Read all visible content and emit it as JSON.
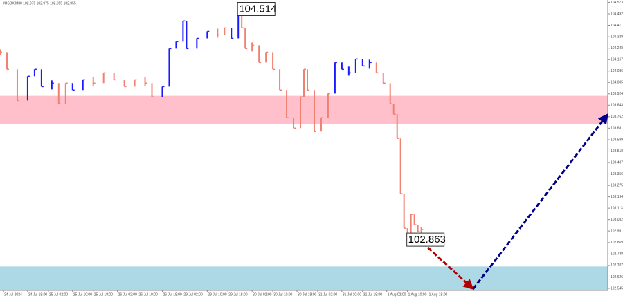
{
  "chart_data": {
    "type": "bar-chart-price",
    "header": "#USDX,M30 102.970 102.975 102.955 102.955",
    "x": [
      0,
      2,
      5,
      8,
      10,
      12,
      15,
      17,
      19,
      21,
      24,
      27,
      30,
      33,
      36,
      39,
      42,
      44,
      47,
      49,
      51,
      53,
      54,
      57,
      60,
      63,
      65,
      67,
      69,
      70,
      71,
      73,
      75,
      77,
      79,
      81,
      83,
      85,
      87,
      88,
      89,
      91,
      93,
      95,
      97,
      99,
      101,
      103,
      105,
      107,
      109,
      111,
      113,
      114,
      115,
      116,
      117,
      118,
      119,
      120,
      121,
      122
    ],
    "values": [
      104.22,
      104.098,
      103.877,
      104.049,
      104.098,
      103.975,
      104.0,
      103.853,
      104.0,
      103.951,
      104.024,
      104.0,
      104.073,
      104.024,
      103.975,
      104.024,
      104.0,
      103.902,
      103.975,
      104.245,
      104.294,
      104.441,
      104.245,
      104.318,
      104.367,
      104.343,
      104.392,
      104.318,
      104.514,
      104.392,
      104.245,
      104.269,
      104.147,
      104.22,
      104.098,
      103.951,
      103.755,
      103.681,
      103.902,
      104.098,
      103.951,
      103.657,
      103.755,
      103.926,
      104.147,
      104.098,
      104.073,
      104.171,
      104.122,
      104.147,
      104.073,
      104.0,
      103.853,
      103.779,
      103.608,
      103.216,
      102.971,
      102.863,
      103.069,
      102.995,
      102.946,
      102.961
    ],
    "colors": [
      "#f08070",
      "#f08070",
      "#f08070",
      "#1a1aff",
      "#1a1aff",
      "#1a1aff",
      "#1a1aff",
      "#f08070",
      "#f08070",
      "#1a1aff",
      "#1a1aff",
      "#f08070",
      "#f08070",
      "#f08070",
      "#f08070",
      "#f08070",
      "#f08070",
      "#f08070",
      "#1a1aff",
      "#1a1aff",
      "#1a1aff",
      "#1a1aff",
      "#1a1aff",
      "#1a1aff",
      "#1a1aff",
      "#f08070",
      "#f08070",
      "#1a1aff",
      "#1a1aff",
      "#f08070",
      "#f08070",
      "#f08070",
      "#f08070",
      "#f08070",
      "#f08070",
      "#f08070",
      "#f08070",
      "#f08070",
      "#f08070",
      "#f08070",
      "#f08070",
      "#f08070",
      "#f08070",
      "#f08070",
      "#1a1aff",
      "#1a1aff",
      "#1a1aff",
      "#1a1aff",
      "#1a1aff",
      "#1a1aff",
      "#f08070",
      "#f08070",
      "#f08070",
      "#f08070",
      "#f08070",
      "#f08070",
      "#f08070",
      "#f08070",
      "#f08070",
      "#f08070",
      "#f08070",
      "#f08070"
    ],
    "xlim": [
      0,
      176
    ],
    "ylim": [
      102.53,
      104.59
    ],
    "yticks": [
      104.573,
      104.492,
      104.411,
      104.329,
      104.248,
      104.167,
      104.086,
      104.005,
      103.924,
      103.843,
      103.762,
      103.681,
      103.599,
      103.518,
      103.437,
      103.356,
      103.275,
      103.194,
      103.113,
      103.032,
      102.951,
      102.869,
      102.788,
      102.707,
      102.626,
      102.545
    ],
    "xticks": [
      {
        "value": 1,
        "label": "24 Jul 2024"
      },
      {
        "value": 8,
        "label": "24 Jul 18:00"
      },
      {
        "value": 14,
        "label": "25 Jul 02:00"
      },
      {
        "value": 21,
        "label": "25 Jul 10:00"
      },
      {
        "value": 27,
        "label": "25 Jul 18:00"
      },
      {
        "value": 34,
        "label": "26 Jul 02:00"
      },
      {
        "value": 40,
        "label": "26 Jul 10:00"
      },
      {
        "value": 47,
        "label": "26 Jul 18:00"
      },
      {
        "value": 53,
        "label": "29 Jul 02:00"
      },
      {
        "value": 60,
        "label": "29 Jul 10:00"
      },
      {
        "value": 66,
        "label": "29 Jul 18:00"
      },
      {
        "value": 73,
        "label": "30 Jul 02:00"
      },
      {
        "value": 79,
        "label": "30 Jul 10:00"
      },
      {
        "value": 86,
        "label": "30 Jul 18:00"
      },
      {
        "value": 92,
        "label": "31 Jul 02:00"
      },
      {
        "value": 99,
        "label": "31 Jul 10:00"
      },
      {
        "value": 105,
        "label": "31 Jul 18:00"
      },
      {
        "value": 112,
        "label": "1 Aug 02:00"
      },
      {
        "value": 118,
        "label": "1 Aug 10:00"
      },
      {
        "value": 124,
        "label": "1 Aug 18:00"
      }
    ],
    "zones": [
      {
        "from": 103.71,
        "to": 103.91,
        "color": "#ffc0cb"
      },
      {
        "from": 102.53,
        "to": 102.7,
        "color": "#add8e6"
      }
    ],
    "arrows": [
      {
        "x": [
          121,
          137
        ],
        "y": [
          102.9,
          102.54
        ],
        "color": "#b00000"
      },
      {
        "x": [
          137,
          176
        ],
        "y": [
          102.54,
          103.78
        ],
        "color": "#00008b"
      }
    ],
    "annotations": [
      {
        "x": 69,
        "value": 104.514,
        "side": "above"
      },
      {
        "x": 118,
        "value": 102.863,
        "side": "below"
      }
    ]
  }
}
